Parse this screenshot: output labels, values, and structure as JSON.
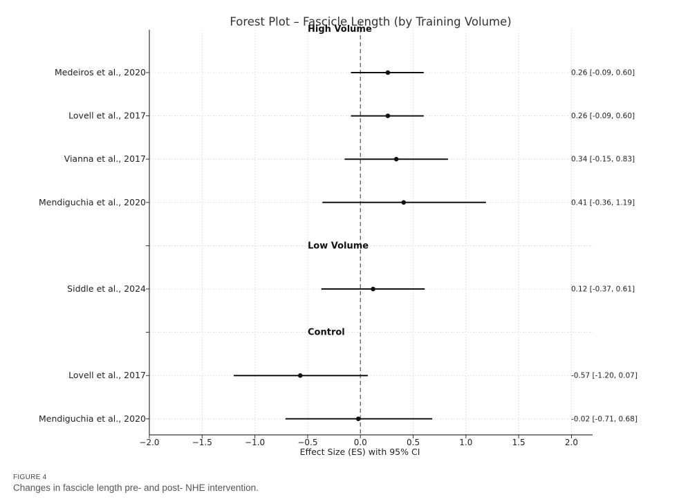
{
  "chart_data": {
    "type": "forest",
    "title": "Forest Plot – Fascicle Length (by Training Volume)",
    "xlabel": "Effect Size (ES) with 95% CI",
    "xlim": [
      -2.0,
      2.2
    ],
    "xticks": [
      -2.0,
      -1.5,
      -1.0,
      -0.5,
      0.0,
      0.5,
      1.0,
      1.5,
      2.0
    ],
    "xtick_labels": [
      "−2.0",
      "−1.5",
      "−1.0",
      "−0.5",
      "0.0",
      "0.5",
      "1.0",
      "1.5",
      "2.0"
    ],
    "grid": true,
    "reference_line": 0.0,
    "groups": [
      {
        "name": "High Volume",
        "studies": [
          {
            "label": "Medeiros et al., 2020",
            "es": 0.26,
            "lower": -0.09,
            "upper": 0.6,
            "text": "0.26 [-0.09, 0.60]"
          },
          {
            "label": "Lovell et al., 2017",
            "es": 0.26,
            "lower": -0.09,
            "upper": 0.6,
            "text": "0.26 [-0.09, 0.60]"
          },
          {
            "label": "Vianna et al., 2017",
            "es": 0.34,
            "lower": -0.15,
            "upper": 0.83,
            "text": "0.34 [-0.15, 0.83]"
          },
          {
            "label": "Mendiguchia et al., 2020",
            "es": 0.41,
            "lower": -0.36,
            "upper": 1.19,
            "text": "0.41 [-0.36, 1.19]"
          }
        ]
      },
      {
        "name": "Low Volume",
        "studies": [
          {
            "label": "Siddle et al., 2024",
            "es": 0.12,
            "lower": -0.37,
            "upper": 0.61,
            "text": "0.12 [-0.37, 0.61]"
          }
        ]
      },
      {
        "name": "Control",
        "studies": [
          {
            "label": "Lovell et al., 2017",
            "es": -0.57,
            "lower": -1.2,
            "upper": 0.07,
            "text": "-0.57 [-1.20, 0.07]"
          },
          {
            "label": "Mendiguchia et al., 2020",
            "es": -0.02,
            "lower": -0.71,
            "upper": 0.68,
            "text": "-0.02 [-0.71, 0.68]"
          }
        ]
      }
    ]
  },
  "figure": {
    "label": "FIGURE 4",
    "caption": "Changes in fascicle length pre- and post- NHE intervention."
  }
}
